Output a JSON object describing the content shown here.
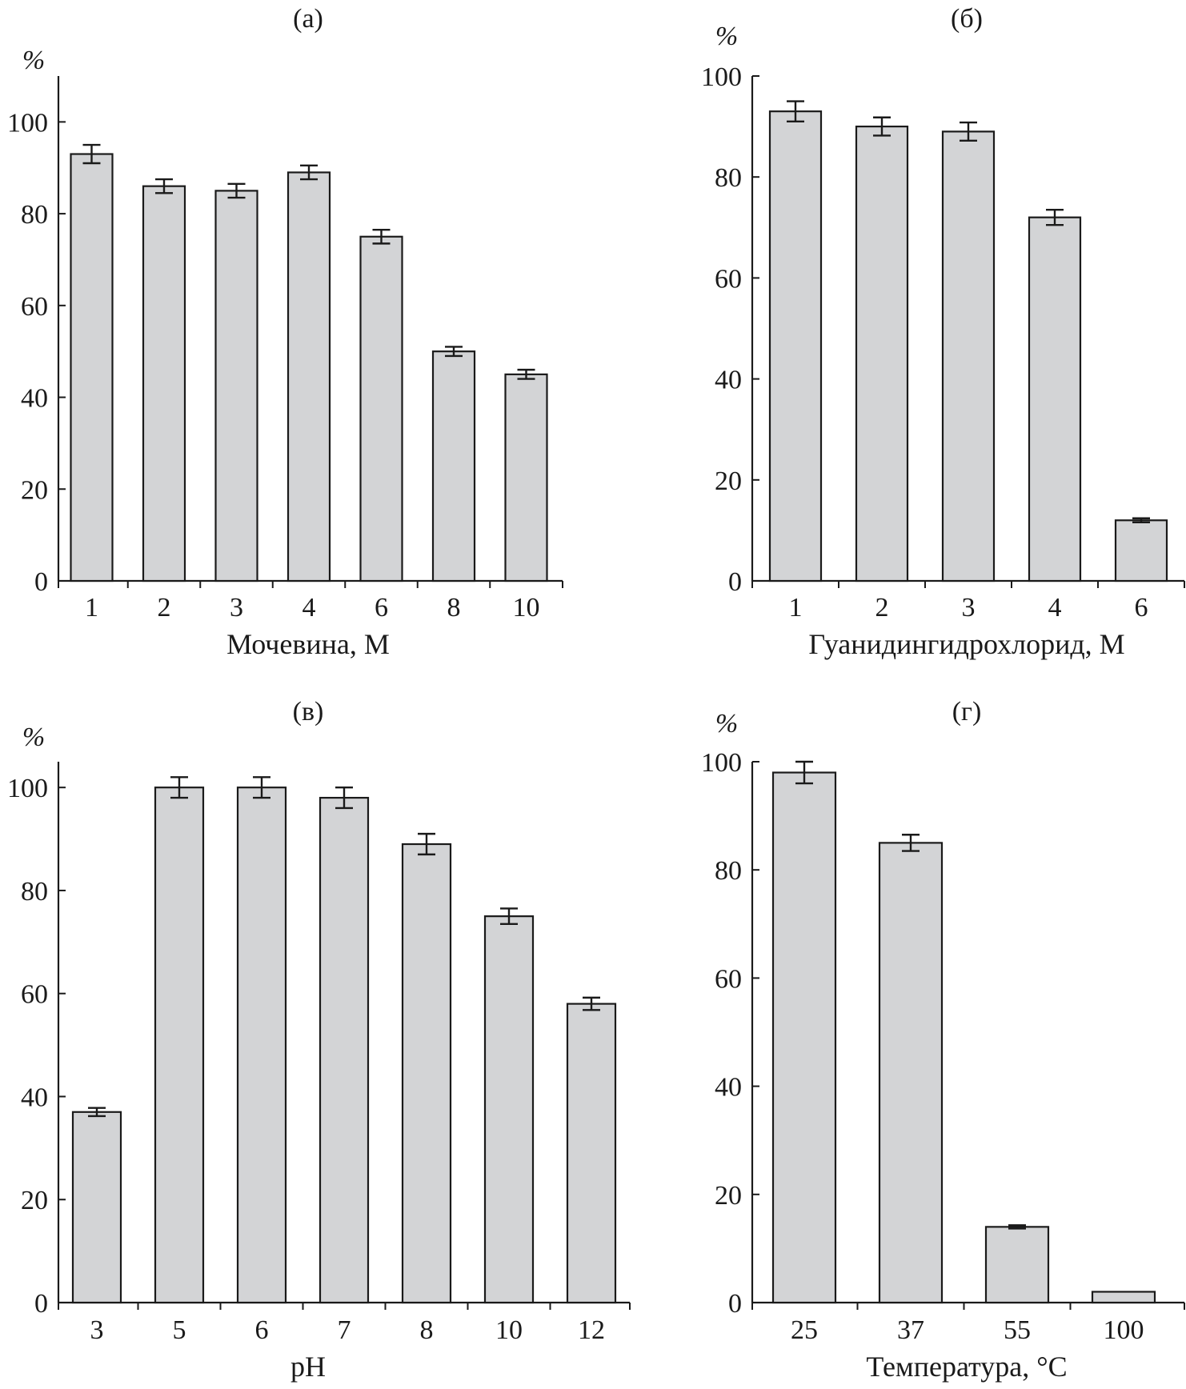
{
  "chart_data": [
    {
      "type": "bar",
      "panel_label": "(а)",
      "ylabel": "%",
      "xlabel": "Мочевина, М",
      "ylim": [
        0,
        110
      ],
      "yticks": [
        0,
        20,
        40,
        60,
        80,
        100
      ],
      "categories": [
        "1",
        "2",
        "3",
        "4",
        "6",
        "8",
        "10"
      ],
      "values": [
        93,
        86,
        85,
        89,
        75,
        50,
        45
      ],
      "errors": [
        2,
        1.5,
        1.5,
        1.5,
        1.5,
        1,
        1
      ],
      "bar_color": "#d3d4d6"
    },
    {
      "type": "bar",
      "panel_label": "(б)",
      "ylabel": "%",
      "xlabel": "Гуанидингидрохлорид, М",
      "ylim": [
        0,
        100
      ],
      "yticks": [
        0,
        20,
        40,
        60,
        80,
        100
      ],
      "categories": [
        "1",
        "2",
        "3",
        "4",
        "6"
      ],
      "values": [
        93,
        90,
        89,
        72,
        12
      ],
      "errors": [
        2,
        1.8,
        1.8,
        1.5,
        0.4
      ],
      "bar_color": "#d3d4d6"
    },
    {
      "type": "bar",
      "panel_label": "(в)",
      "ylabel": "%",
      "xlabel": "pH",
      "ylim": [
        0,
        105
      ],
      "yticks": [
        0,
        20,
        40,
        60,
        80,
        100
      ],
      "categories": [
        "3",
        "5",
        "6",
        "7",
        "8",
        "10",
        "12"
      ],
      "values": [
        37,
        100,
        100,
        98,
        89,
        75,
        58
      ],
      "errors": [
        0.8,
        2,
        2,
        2,
        2,
        1.5,
        1.2
      ],
      "bar_color": "#d3d4d6"
    },
    {
      "type": "bar",
      "panel_label": "(г)",
      "ylabel": "%",
      "xlabel": "Температура, °С",
      "ylim": [
        0,
        100
      ],
      "yticks": [
        0,
        20,
        40,
        60,
        80,
        100
      ],
      "categories": [
        "25",
        "37",
        "55",
        "100"
      ],
      "values": [
        98,
        85,
        14,
        2
      ],
      "errors": [
        2,
        1.5,
        0.3,
        0
      ],
      "bar_color": "#d3d4d6"
    }
  ]
}
